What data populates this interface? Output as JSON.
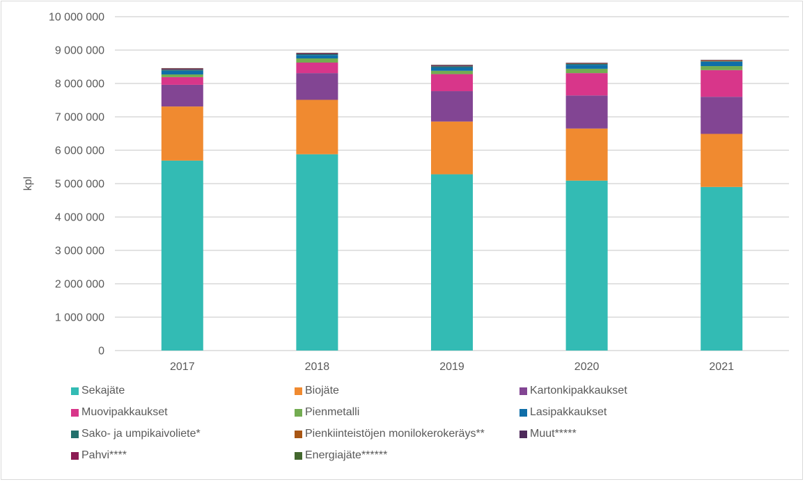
{
  "chart_data": {
    "type": "bar",
    "stacked": true,
    "title": "",
    "xlabel": "",
    "ylabel": "kpl",
    "ylim": [
      0,
      10000000
    ],
    "yticks": [
      0,
      1000000,
      2000000,
      3000000,
      4000000,
      5000000,
      6000000,
      7000000,
      8000000,
      9000000,
      10000000
    ],
    "ytick_labels": [
      "0",
      "1 000 000",
      "2 000 000",
      "3 000 000",
      "4 000 000",
      "5 000 000",
      "6 000 000",
      "7 000 000",
      "8 000 000",
      "9 000 000",
      "10 000 000"
    ],
    "grid": true,
    "legend_position": "bottom",
    "categories": [
      "2017",
      "2018",
      "2019",
      "2020",
      "2021"
    ],
    "series": [
      {
        "name": "Sekajäte",
        "color": "#33bbb4",
        "values": [
          5690000,
          5880000,
          5280000,
          5090000,
          4900000
        ]
      },
      {
        "name": "Biojäte",
        "color": "#f08a30",
        "values": [
          1620000,
          1630000,
          1580000,
          1560000,
          1590000
        ]
      },
      {
        "name": "Kartonkipakkaukset",
        "color": "#824593",
        "values": [
          650000,
          800000,
          910000,
          990000,
          1110000
        ]
      },
      {
        "name": "Muovipakkaukset",
        "color": "#d8368a",
        "values": [
          230000,
          315000,
          510000,
          670000,
          800000
        ]
      },
      {
        "name": "Pienmetalli",
        "color": "#73ac51",
        "values": [
          80000,
          125000,
          100000,
          130000,
          120000
        ]
      },
      {
        "name": "Lasipakkaukset",
        "color": "#0f6ea8",
        "values": [
          110000,
          100000,
          100000,
          120000,
          130000
        ]
      },
      {
        "name": "Sako- ja umpikaivoliete*",
        "color": "#22706c",
        "values": [
          30000,
          25000,
          30000,
          25000,
          15000
        ]
      },
      {
        "name": "Pienkiinteistöjen monilokerokeräys**",
        "color": "#a85614",
        "values": [
          0,
          0,
          5000,
          10000,
          20000
        ]
      },
      {
        "name": "Muut*****",
        "color": "#4e2a5a",
        "values": [
          20000,
          20000,
          20000,
          15000,
          10000
        ]
      },
      {
        "name": "Pahvi****",
        "color": "#8c1c54",
        "values": [
          20000,
          15000,
          15000,
          10000,
          10000
        ]
      },
      {
        "name": "Energiajäte******",
        "color": "#43672e",
        "values": [
          10000,
          10000,
          10000,
          5000,
          5000
        ]
      }
    ]
  }
}
